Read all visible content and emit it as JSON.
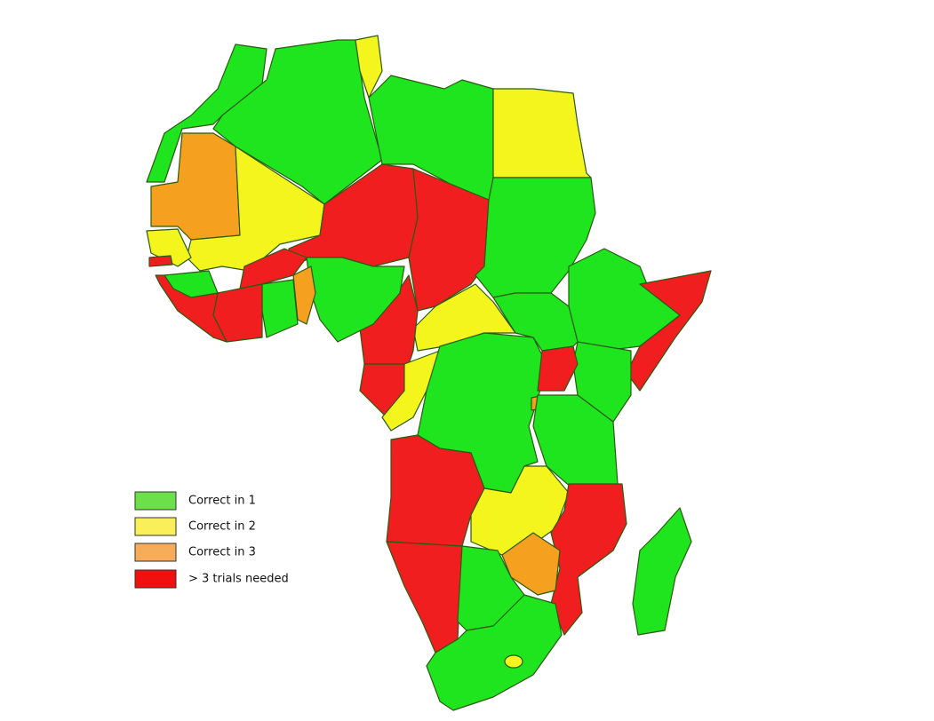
{
  "legend": {
    "items": [
      {
        "label": "Correct in 1"
      },
      {
        "label": "Correct in 2"
      },
      {
        "label": "Correct in 3"
      },
      {
        "label": "> 3 trials needed"
      }
    ]
  }
}
